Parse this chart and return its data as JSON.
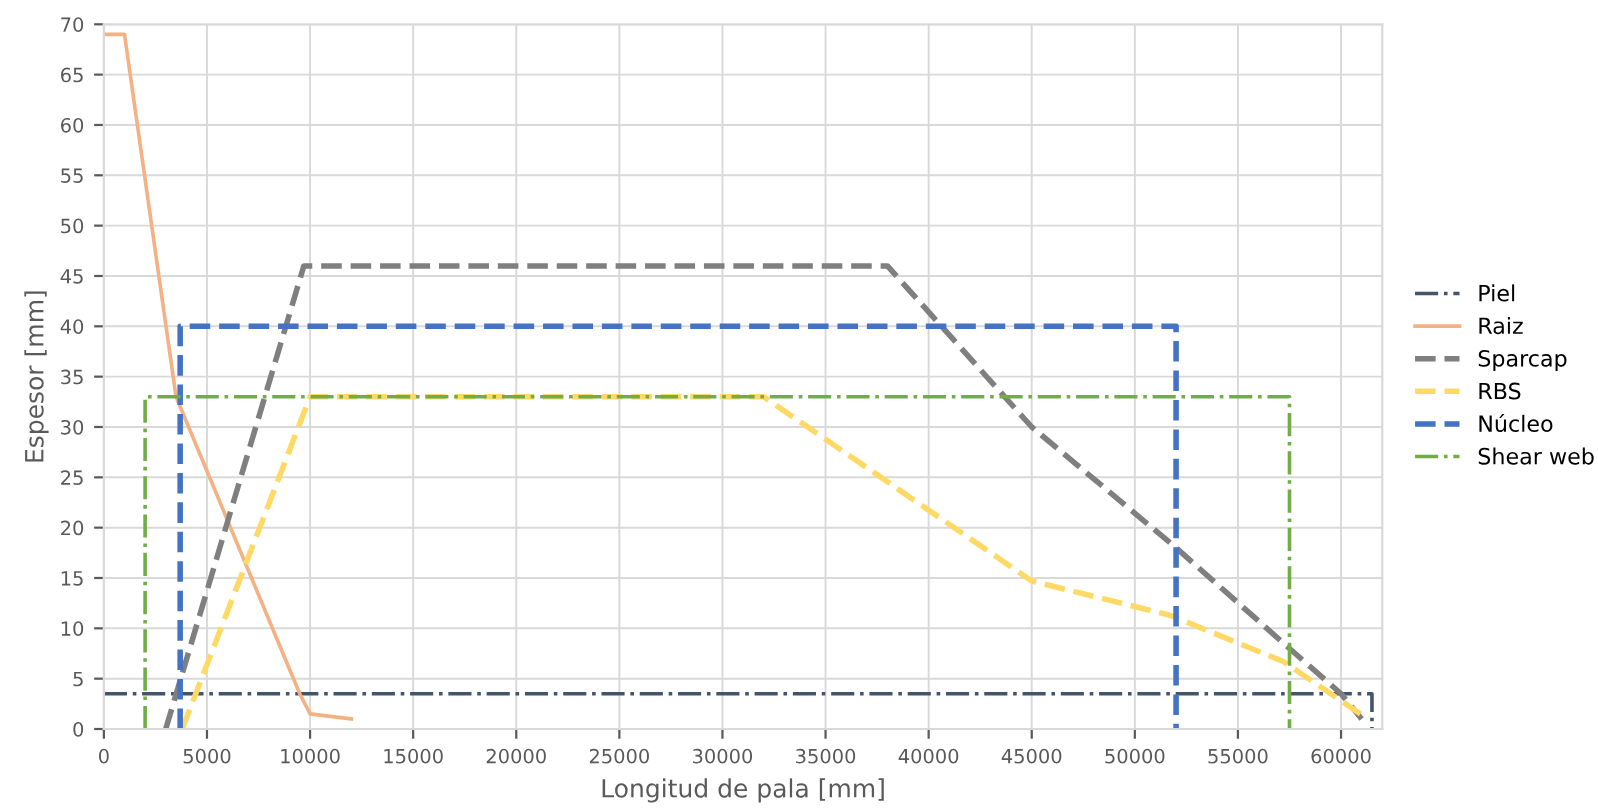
{
  "chart_data": {
    "type": "line",
    "xlabel": "Longitud de pala [mm]",
    "ylabel": "Espesor [mm]",
    "xlim": [
      0,
      62000
    ],
    "xticks": [
      0,
      5000,
      10000,
      15000,
      20000,
      25000,
      30000,
      35000,
      40000,
      45000,
      50000,
      55000,
      60000
    ],
    "ylim": [
      0,
      70
    ],
    "yticks": [
      0,
      5,
      10,
      15,
      20,
      25,
      30,
      35,
      40,
      45,
      50,
      55,
      60,
      65,
      70
    ],
    "grid": true,
    "legend": "right",
    "marker": "none",
    "series": [
      {
        "name": "Piel",
        "color": "#44546a",
        "line_style": "dashdot",
        "x": [
          0,
          61500,
          61500
        ],
        "values": [
          3.5,
          3.5,
          0
        ]
      },
      {
        "name": "Raiz",
        "color": "#f4b183",
        "line_style": "solid",
        "x": [
          0,
          1000,
          3500,
          9500,
          10000,
          12000
        ],
        "values": [
          69,
          69,
          33,
          3.5,
          1.5,
          1
        ]
      },
      {
        "name": "Sparcap",
        "color": "#7f7f7f",
        "line_style": "dashed",
        "x": [
          3000,
          9700,
          38000,
          45000,
          52000,
          57500,
          60000,
          61000
        ],
        "values": [
          0,
          46,
          46,
          30,
          18,
          8,
          3.5,
          1
        ]
      },
      {
        "name": "RBS",
        "color": "#ffd966",
        "line_style": "dashed",
        "x": [
          3800,
          10000,
          32000,
          45000,
          51700,
          57200,
          61300
        ],
        "values": [
          0,
          33,
          33,
          14.7,
          11.3,
          6.7,
          1
        ]
      },
      {
        "name": "Núcleo",
        "color": "#4472c4",
        "line_style": "dashed",
        "x": [
          3700,
          3700,
          52000,
          52000
        ],
        "values": [
          0,
          40,
          40,
          0
        ]
      },
      {
        "name": "Shear web",
        "color": "#70ad47",
        "line_style": "dashdot",
        "x": [
          2000,
          2000,
          57500,
          57500
        ],
        "values": [
          0,
          33,
          33,
          0
        ]
      }
    ]
  }
}
